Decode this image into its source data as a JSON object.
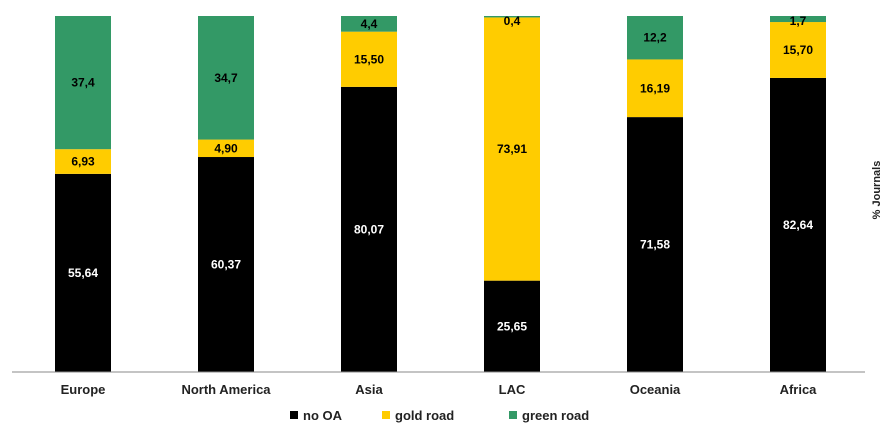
{
  "chart_data": {
    "type": "bar",
    "stacked": true,
    "normalized": true,
    "ylabel": "% Journals",
    "categories": [
      "Europe",
      "North America",
      "Asia",
      "LAC",
      "Oceania",
      "Africa"
    ],
    "series": [
      {
        "name": "no OA",
        "color": "#000000",
        "label_color": "#ffffff",
        "values": [
          55.64,
          60.37,
          80.07,
          25.65,
          71.58,
          82.64
        ],
        "labels": [
          "55,64",
          "60,37",
          "80,07",
          "25,65",
          "71,58",
          "82,64"
        ]
      },
      {
        "name": "gold road",
        "color": "#ffcc00",
        "label_color": "#000000",
        "values": [
          6.93,
          4.9,
          15.5,
          73.91,
          16.19,
          15.7
        ],
        "labels": [
          "6,93",
          "4,90",
          "15,50",
          "73,91",
          "16,19",
          "15,70"
        ]
      },
      {
        "name": "green road",
        "color": "#339966",
        "label_color": "#000000",
        "values": [
          37.4,
          34.7,
          4.4,
          0.4,
          12.2,
          1.7
        ],
        "labels": [
          "37,4",
          "34,7",
          "4,4",
          "0,4",
          "12,2",
          "1,7"
        ]
      }
    ],
    "ylim": [
      0,
      100
    ],
    "grid": false,
    "legend_position": "bottom"
  }
}
